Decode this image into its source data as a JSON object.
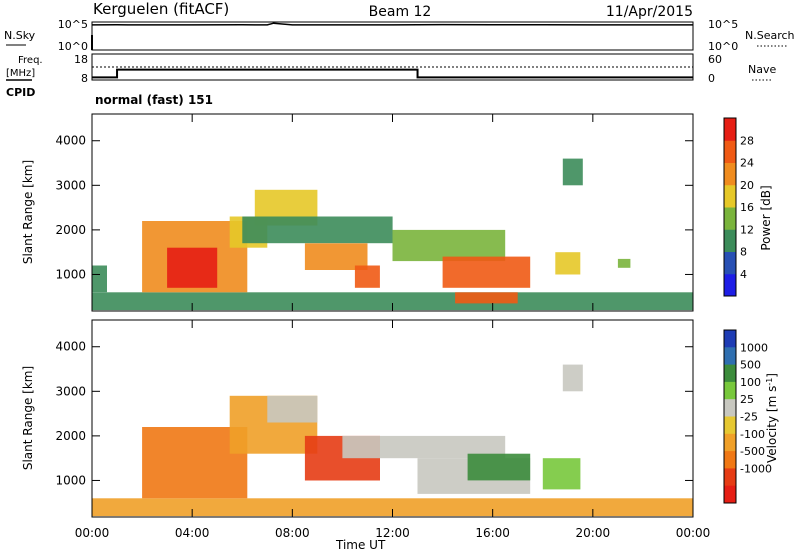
{
  "header": {
    "site": "Kerguelen (fitACF)",
    "beam": "Beam 12",
    "date": "11/Apr/2015"
  },
  "noise_panel": {
    "left_label": "N.Sky",
    "right_label": "N.Search",
    "left_ticks": [
      "10^5",
      "10^0"
    ],
    "right_ticks": [
      "10^5",
      "10^0"
    ]
  },
  "freq_panel": {
    "left_label_1": "Freq.",
    "left_label_2": "[MHz]",
    "right_label": "Nave",
    "cpid_label": "CPID",
    "left_ticks": [
      "18",
      "8"
    ],
    "right_ticks": [
      "60",
      "0"
    ]
  },
  "cpid_text": "normal (fast) 151",
  "x_axis": {
    "label": "Time UT",
    "ticks": [
      "00:00",
      "04:00",
      "08:00",
      "12:00",
      "16:00",
      "20:00",
      "00:00"
    ]
  },
  "colors": {
    "power_scale": [
      "#1e1ee6",
      "#2850b4",
      "#3c8c5a",
      "#7ab43c",
      "#e6c828",
      "#f08c1e",
      "#f05a14",
      "#e61e14"
    ],
    "velocity_scale": [
      "#1e3cb4",
      "#2f6fb0",
      "#3c8c3c",
      "#78c83c",
      "#c8c8c0",
      "#e6c832",
      "#f0a028",
      "#f07814",
      "#e63c14",
      "#e61e14"
    ],
    "ground_scatter": "#c0c0b8"
  },
  "chart_data": [
    {
      "type": "line",
      "title": "N.Sky / N.Search",
      "xlabel": "",
      "ylabel": "N.Sky",
      "x": [
        "00:00",
        "01:00",
        "02:00",
        "04:00",
        "06:00",
        "07:00",
        "07:15",
        "08:00",
        "10:00",
        "12:00",
        "13:00",
        "14:00",
        "16:00",
        "18:00",
        "20:00",
        "22:00",
        "24:00"
      ],
      "series": [
        {
          "name": "N.Sky",
          "values": [
            30000,
            31000,
            30500,
            30000,
            31000,
            30000,
            60000,
            30000,
            30000,
            30500,
            32000,
            34000,
            32000,
            31500,
            30000,
            30500,
            30000
          ]
        },
        {
          "name": "N.Search",
          "values": [
            1,
            1,
            1,
            1,
            1,
            1,
            1,
            1,
            1,
            1,
            1,
            1,
            1,
            1,
            1,
            1,
            1
          ]
        }
      ],
      "ylim": [
        1,
        100000
      ],
      "log_scale": true
    },
    {
      "type": "line",
      "title": "Freq. / Nave",
      "xlabel": "",
      "ylabel": "[MHz]",
      "x": [
        "00:00",
        "01:00",
        "13:00",
        "24:00"
      ],
      "series": [
        {
          "name": "Freq.",
          "values": [
            9,
            12,
            9,
            9
          ]
        },
        {
          "name": "Nave",
          "values": [
            28,
            28,
            28,
            28
          ]
        }
      ],
      "ylim_left": [
        8,
        18
      ],
      "ylim_right": [
        0,
        60
      ]
    },
    {
      "type": "heatmap",
      "title": "Power",
      "xlabel": "Time UT",
      "ylabel": "Slant Range [km]",
      "colorbar_label": "Power [dB]",
      "colorbar_ticks": [
        4,
        8,
        12,
        16,
        20,
        24,
        28
      ],
      "colorbar_range": [
        0,
        32
      ],
      "x_ticks": [
        "00:00",
        "04:00",
        "08:00",
        "12:00",
        "16:00",
        "20:00",
        "00:00"
      ],
      "y_ticks": [
        1000,
        2000,
        3000,
        4000
      ],
      "ylim": [
        180,
        4600
      ],
      "xlim_hours": [
        0,
        24
      ],
      "regions": [
        {
          "t0": 0.0,
          "t1": 24.0,
          "r0": 200,
          "r1": 600,
          "power": 10
        },
        {
          "t0": 0.0,
          "t1": 0.6,
          "r0": 600,
          "r1": 1200,
          "power": 9
        },
        {
          "t0": 2.0,
          "t1": 6.2,
          "r0": 600,
          "r1": 2200,
          "power": 22
        },
        {
          "t0": 3.0,
          "t1": 5.0,
          "r0": 700,
          "r1": 1600,
          "power": 28
        },
        {
          "t0": 5.5,
          "t1": 7.0,
          "r0": 1600,
          "r1": 2300,
          "power": 18
        },
        {
          "t0": 6.5,
          "t1": 9.0,
          "r0": 2100,
          "r1": 2900,
          "power": 16
        },
        {
          "t0": 6.0,
          "t1": 12.0,
          "r0": 1700,
          "r1": 2300,
          "power": 9
        },
        {
          "t0": 8.5,
          "t1": 11.0,
          "r0": 1100,
          "r1": 1700,
          "power": 20
        },
        {
          "t0": 10.5,
          "t1": 11.5,
          "r0": 700,
          "r1": 1200,
          "power": 27
        },
        {
          "t0": 12.0,
          "t1": 16.5,
          "r0": 1300,
          "r1": 2000,
          "power": 14
        },
        {
          "t0": 14.0,
          "t1": 17.5,
          "r0": 700,
          "r1": 1400,
          "power": 26
        },
        {
          "t0": 14.5,
          "t1": 17.0,
          "r0": 350,
          "r1": 600,
          "power": 25
        },
        {
          "t0": 18.5,
          "t1": 19.5,
          "r0": 1000,
          "r1": 1500,
          "power": 18
        },
        {
          "t0": 18.8,
          "t1": 19.6,
          "r0": 3000,
          "r1": 3600,
          "power": 8
        },
        {
          "t0": 21.0,
          "t1": 21.5,
          "r0": 1150,
          "r1": 1350,
          "power": 14
        }
      ]
    },
    {
      "type": "heatmap",
      "title": "Velocity",
      "xlabel": "Time UT",
      "ylabel": "Slant Range [km]",
      "colorbar_label": "Velocity [m s-1]",
      "colorbar_ticks": [
        "1000",
        "500",
        "100",
        "25",
        "-25",
        "-100",
        "-500",
        "-1000"
      ],
      "x_ticks": [
        "00:00",
        "04:00",
        "08:00",
        "12:00",
        "16:00",
        "20:00",
        "00:00"
      ],
      "y_ticks": [
        1000,
        2000,
        3000,
        4000
      ],
      "ylim": [
        180,
        4600
      ],
      "xlim_hours": [
        0,
        24
      ],
      "regions": [
        {
          "t0": 0.0,
          "t1": 24.0,
          "r0": 200,
          "r1": 600,
          "velocity": -150
        },
        {
          "t0": 2.0,
          "t1": 6.2,
          "r0": 600,
          "r1": 2200,
          "velocity": -400
        },
        {
          "t0": 5.5,
          "t1": 9.0,
          "r0": 1600,
          "r1": 2900,
          "velocity": -200
        },
        {
          "t0": 7.0,
          "t1": 9.0,
          "r0": 2300,
          "r1": 2900,
          "velocity": 0
        },
        {
          "t0": 8.5,
          "t1": 11.5,
          "r0": 1000,
          "r1": 2000,
          "velocity": -500
        },
        {
          "t0": 10.0,
          "t1": 16.5,
          "r0": 1500,
          "r1": 2000,
          "velocity": 0
        },
        {
          "t0": 13.0,
          "t1": 17.5,
          "r0": 700,
          "r1": 1500,
          "velocity": 0
        },
        {
          "t0": 15.0,
          "t1": 17.5,
          "r0": 1000,
          "r1": 1600,
          "velocity": 150
        },
        {
          "t0": 18.0,
          "t1": 19.5,
          "r0": 800,
          "r1": 1500,
          "velocity": 80
        },
        {
          "t0": 18.8,
          "t1": 19.6,
          "r0": 3000,
          "r1": 3600,
          "velocity": 0
        }
      ]
    }
  ]
}
